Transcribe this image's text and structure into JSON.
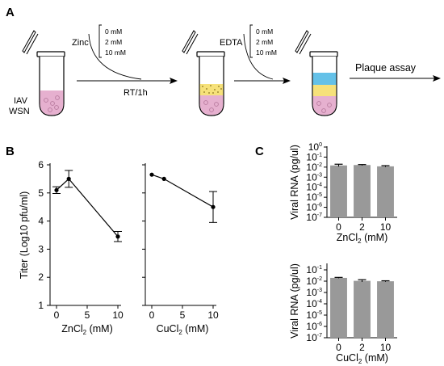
{
  "panels": {
    "a": "A",
    "b": "B",
    "c": "C"
  },
  "schematic": {
    "virus_line1": "IAV",
    "virus_line2": "WSN",
    "zinc_label": "Zinc",
    "zinc_doses": [
      "0 mM",
      "2 mM",
      "10 mM"
    ],
    "incubation": "RT/1h",
    "edta_label": "EDTA",
    "edta_doses": [
      "0 mM",
      "2 mM",
      "10 mM"
    ],
    "assay": "Plaque assay"
  },
  "colors": {
    "tube_fill": "#e6b0cf",
    "tube_dots": "#b77a9d",
    "zinc_layer": "#f6e17a",
    "zinc_dots": "#8a7420",
    "edta_layer": "#64c1e8",
    "bar_fill": "#999999"
  },
  "chart_data": [
    {
      "type": "line",
      "panel": "B",
      "ylabel": "Titer (Log10 pfu/ml)",
      "xlabel_main": "ZnCl",
      "xlabel_sub": "2",
      "xlabel_unit": " (mM)",
      "xticks": [
        "0",
        "5",
        "10"
      ],
      "yticks": [
        "1",
        "2",
        "3",
        "4",
        "5",
        "6"
      ],
      "xlim": [
        0,
        10
      ],
      "ylim": [
        1,
        6
      ],
      "x": [
        0,
        2,
        10
      ],
      "y": [
        5.1,
        5.5,
        3.45
      ],
      "err": [
        0.12,
        0.3,
        0.18
      ]
    },
    {
      "type": "line",
      "panel": "B",
      "xlabel_main": "CuCl",
      "xlabel_sub": "2",
      "xlabel_unit": " (mM)",
      "xticks": [
        "0",
        "5",
        "10"
      ],
      "xlim": [
        0,
        10
      ],
      "ylim": [
        1,
        6
      ],
      "x": [
        0,
        2,
        10
      ],
      "y": [
        5.65,
        5.5,
        4.5
      ],
      "err": [
        0.02,
        0.02,
        0.55
      ]
    },
    {
      "type": "bar",
      "panel": "C",
      "ylabel": "Viral RNA (pg/ul)",
      "xlabel_main": "ZnCl",
      "xlabel_sub": "2",
      "xlabel_unit": " (mM)",
      "categories": [
        "0",
        "2",
        "10"
      ],
      "log_scale": true,
      "ytick_exponents": [
        "0",
        "-1",
        "-2",
        "-3",
        "-4",
        "-5",
        "-6",
        "-7"
      ],
      "ylim_exponent": [
        -7,
        0
      ],
      "values": [
        0.0148,
        0.0162,
        0.012
      ],
      "err_upper": [
        0.0195,
        0.018,
        0.014
      ],
      "err_lower": [
        0.0115,
        0.0145,
        0.0105
      ]
    },
    {
      "type": "bar",
      "panel": "C",
      "ylabel": "Viral RNA (pg/ul)",
      "xlabel_main": "CuCl",
      "xlabel_sub": "2",
      "xlabel_unit": " (mM)",
      "categories": [
        "0",
        "2",
        "10"
      ],
      "log_scale": true,
      "ytick_exponents": [
        "-1",
        "-2",
        "-3",
        "-4",
        "-5",
        "-6",
        "-7"
      ],
      "ylim_exponent": [
        -7,
        -0.5
      ],
      "values": [
        0.0195,
        0.0107,
        0.0098
      ],
      "err_upper": [
        0.0215,
        0.0135,
        0.0108
      ],
      "err_lower": [
        0.018,
        0.0085,
        0.0088
      ]
    }
  ]
}
